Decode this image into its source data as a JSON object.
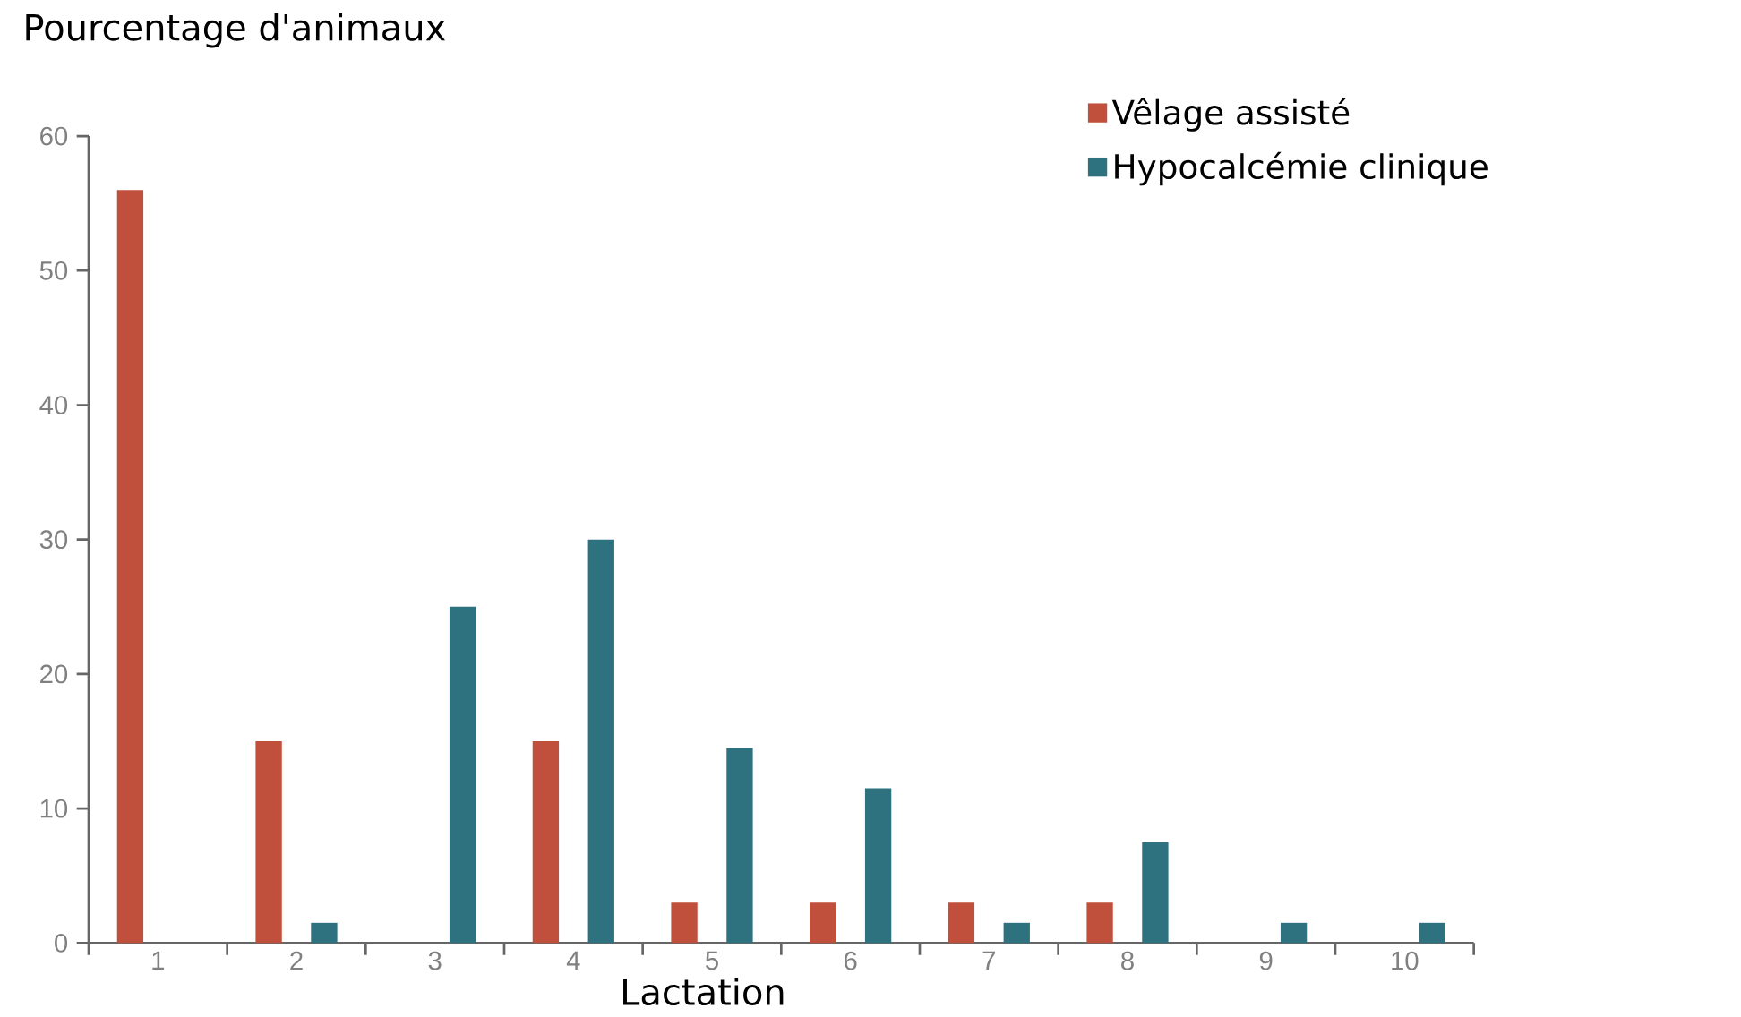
{
  "chart_data": {
    "type": "bar",
    "ylabel": "Pourcentage d'animaux",
    "xlabel": "Lactation",
    "categories": [
      "1",
      "2",
      "3",
      "4",
      "5",
      "6",
      "7",
      "8",
      "9",
      "10"
    ],
    "series": [
      {
        "name": "Vêlage assisté",
        "color": "#c0503c",
        "values": [
          56,
          15,
          0,
          15,
          3,
          3,
          3,
          3,
          0,
          0
        ]
      },
      {
        "name": "Hypocalcémie clinique",
        "color": "#2e7280",
        "values": [
          0,
          1.5,
          25,
          30,
          14.5,
          11.5,
          1.5,
          7.5,
          1.5,
          1.5
        ]
      }
    ],
    "ylim": [
      0,
      60
    ],
    "yticks": [
      0,
      10,
      20,
      30,
      40,
      50,
      60
    ],
    "legend": "top right",
    "grid": false
  }
}
